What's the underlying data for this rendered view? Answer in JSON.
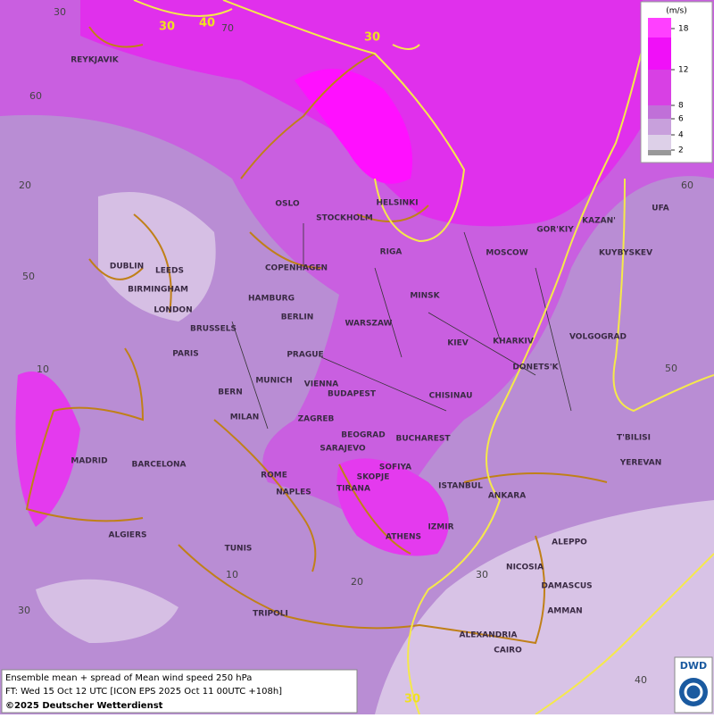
{
  "legend": {
    "title": "(m/s)",
    "ticks": [
      18,
      12,
      8,
      6,
      4,
      2
    ]
  },
  "contour_labels": [
    30,
    40,
    30,
    30
  ],
  "grid_labels": [
    30,
    70,
    60,
    20,
    50,
    10,
    30,
    10,
    20,
    30,
    40,
    60,
    50
  ],
  "cities": [
    "REYKJAVIK",
    "OSLO",
    "STOCKHOLM",
    "HELSINKI",
    "DUBLIN",
    "LEEDS",
    "BIRMINGHAM",
    "COPENHAGEN",
    "RIGA",
    "MOSCOW",
    "GOR'KIY",
    "KAZAN'",
    "UFA",
    "KUYBYSKEV",
    "LONDON",
    "HAMBURG",
    "BERLIN",
    "MINSK",
    "WARSZAW",
    "KIEV",
    "KHARKIV",
    "VOLGOGRAD",
    "BRUSSELS",
    "PARIS",
    "PRAGUE",
    "DONETS'K",
    "MUNICH",
    "VIENNA",
    "BERN",
    "BUDAPEST",
    "CHISINAU",
    "MILAN",
    "ZAGREB",
    "BEOGRAD",
    "BUCHAREST",
    "T'BILISI",
    "SARAJEVO",
    "MADRID",
    "BARCELONA",
    "SOFIYA",
    "YEREVAN",
    "ROME",
    "SKOPJE",
    "ISTANBUL",
    "TIRANA",
    "NAPLES",
    "ANKARA",
    "ALGIERS",
    "IZMIR",
    "ATHENS",
    "ALEPPO",
    "TUNIS",
    "NICOSIA",
    "DAMASCUS",
    "AMMAN",
    "TRIPOLI",
    "ALEXANDRIA",
    "CAIRO"
  ],
  "footer": {
    "line1": "Ensemble mean + spread of Mean wind speed 250 hPa",
    "line2": "FT: Wed 15 Oct 12 UTC [ICON EPS 2025 Oct 11 00UTC +108h]",
    "copyright": "©2025 Deutscher Wetterdienst"
  },
  "logo": "DWD"
}
